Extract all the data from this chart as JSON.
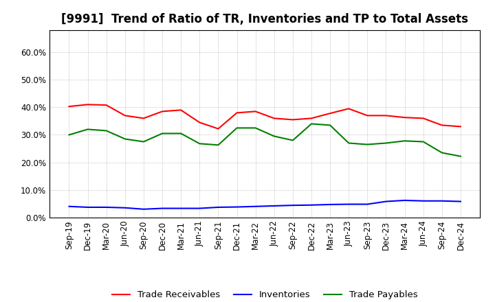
{
  "title": "[9991]  Trend of Ratio of TR, Inventories and TP to Total Assets",
  "x_labels": [
    "Sep-19",
    "Dec-19",
    "Mar-20",
    "Jun-20",
    "Sep-20",
    "Dec-20",
    "Mar-21",
    "Jun-21",
    "Sep-21",
    "Dec-21",
    "Mar-22",
    "Jun-22",
    "Sep-22",
    "Dec-22",
    "Mar-23",
    "Jun-23",
    "Sep-23",
    "Dec-23",
    "Mar-24",
    "Jun-24",
    "Sep-24",
    "Dec-24"
  ],
  "trade_receivables": [
    0.403,
    0.41,
    0.408,
    0.37,
    0.36,
    0.385,
    0.39,
    0.345,
    0.322,
    0.38,
    0.385,
    0.36,
    0.355,
    0.36,
    0.378,
    0.395,
    0.37,
    0.37,
    0.363,
    0.36,
    0.335,
    0.33
  ],
  "inventories": [
    0.04,
    0.037,
    0.037,
    0.035,
    0.03,
    0.033,
    0.033,
    0.033,
    0.037,
    0.038,
    0.04,
    0.042,
    0.044,
    0.045,
    0.047,
    0.048,
    0.048,
    0.058,
    0.062,
    0.06,
    0.06,
    0.058
  ],
  "trade_payables": [
    0.3,
    0.32,
    0.315,
    0.285,
    0.275,
    0.305,
    0.305,
    0.268,
    0.263,
    0.325,
    0.325,
    0.295,
    0.28,
    0.34,
    0.335,
    0.27,
    0.265,
    0.27,
    0.278,
    0.275,
    0.235,
    0.222
  ],
  "ylim": [
    0.0,
    0.68
  ],
  "yticks": [
    0.0,
    0.1,
    0.2,
    0.3,
    0.4,
    0.5,
    0.6
  ],
  "color_tr": "#ff0000",
  "color_inv": "#0000ff",
  "color_tp": "#008000",
  "legend_labels": [
    "Trade Receivables",
    "Inventories",
    "Trade Payables"
  ],
  "background_color": "#ffffff",
  "grid_color": "#aaaaaa",
  "title_fontsize": 12,
  "tick_fontsize": 8.5,
  "legend_fontsize": 9.5
}
